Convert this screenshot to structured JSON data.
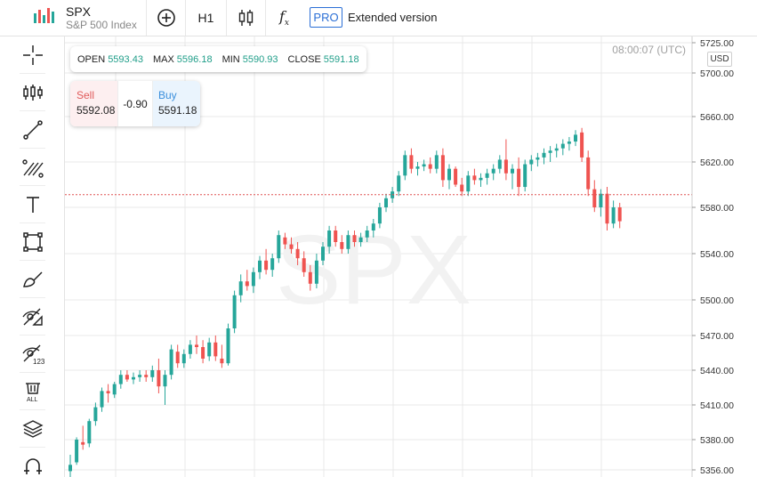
{
  "header": {
    "symbol": "SPX",
    "description": "S&P 500 Index",
    "timeframe": "H1",
    "pro_badge": "PRO",
    "extended_label": "Extended version"
  },
  "left_tools": [
    {
      "name": "crosshair-icon"
    },
    {
      "name": "indicators-icon"
    },
    {
      "name": "trend-line-icon"
    },
    {
      "name": "fib-tools-icon"
    },
    {
      "name": "text-tool-icon"
    },
    {
      "name": "rectangle-tool-icon"
    },
    {
      "name": "brush-tool-icon"
    },
    {
      "name": "hide-drawings-icon"
    },
    {
      "name": "hide-indicators-icon"
    },
    {
      "name": "delete-all-icon"
    },
    {
      "name": "layers-icon"
    },
    {
      "name": "magnet-icon"
    }
  ],
  "ohlc": {
    "open_label": "OPEN",
    "open": "5593.43",
    "max_label": "MAX",
    "max": "5596.18",
    "min_label": "MIN",
    "min": "5590.93",
    "close_label": "CLOSE",
    "close": "5591.18"
  },
  "trade": {
    "sell_label": "Sell",
    "sell_price": "5592.08",
    "change": "-0.90",
    "buy_label": "Buy",
    "buy_price": "5591.18"
  },
  "clock": "08:00:07 (UTC)",
  "currency": "USD",
  "watermark": "SPX",
  "colors": {
    "up": "#26a69a",
    "down": "#ef5350",
    "grid": "#e8e8e8",
    "last_price_line": "#e05050"
  },
  "chart_data": {
    "type": "candlestick",
    "y_ticks": [
      "5725.00",
      "5700.00",
      "5660.00",
      "5620.00",
      "5580.00",
      "5540.00",
      "5500.00",
      "5470.00",
      "5440.00",
      "5410.00",
      "5380.00",
      "5356.00"
    ],
    "last_price": 5591.18,
    "candles": [
      [
        5355,
        5368,
        5345,
        5360
      ],
      [
        5362,
        5382,
        5360,
        5380
      ],
      [
        5378,
        5392,
        5372,
        5376
      ],
      [
        5377,
        5398,
        5374,
        5396
      ],
      [
        5396,
        5412,
        5392,
        5408
      ],
      [
        5408,
        5425,
        5404,
        5422
      ],
      [
        5422,
        5428,
        5412,
        5420
      ],
      [
        5419,
        5430,
        5416,
        5428
      ],
      [
        5428,
        5440,
        5424,
        5436
      ],
      [
        5436,
        5440,
        5430,
        5432
      ],
      [
        5432,
        5438,
        5428,
        5434
      ],
      [
        5434,
        5440,
        5430,
        5436
      ],
      [
        5436,
        5440,
        5430,
        5434
      ],
      [
        5434,
        5444,
        5430,
        5440
      ],
      [
        5440,
        5450,
        5420,
        5426
      ],
      [
        5426,
        5440,
        5410,
        5436
      ],
      [
        5436,
        5462,
        5432,
        5458
      ],
      [
        5456,
        5462,
        5442,
        5446
      ],
      [
        5446,
        5458,
        5442,
        5454
      ],
      [
        5454,
        5466,
        5450,
        5462
      ],
      [
        5462,
        5470,
        5454,
        5460
      ],
      [
        5460,
        5466,
        5446,
        5450
      ],
      [
        5452,
        5468,
        5448,
        5464
      ],
      [
        5464,
        5470,
        5448,
        5452
      ],
      [
        5450,
        5462,
        5442,
        5446
      ],
      [
        5446,
        5480,
        5444,
        5476
      ],
      [
        5476,
        5508,
        5472,
        5504
      ],
      [
        5504,
        5522,
        5498,
        5516
      ],
      [
        5516,
        5526,
        5508,
        5512
      ],
      [
        5512,
        5528,
        5506,
        5524
      ],
      [
        5524,
        5538,
        5518,
        5534
      ],
      [
        5534,
        5544,
        5522,
        5526
      ],
      [
        5526,
        5540,
        5520,
        5536
      ],
      [
        5536,
        5560,
        5532,
        5556
      ],
      [
        5554,
        5558,
        5544,
        5548
      ],
      [
        5548,
        5554,
        5540,
        5544
      ],
      [
        5544,
        5550,
        5530,
        5536
      ],
      [
        5536,
        5542,
        5520,
        5524
      ],
      [
        5524,
        5530,
        5508,
        5514
      ],
      [
        5514,
        5540,
        5510,
        5534
      ],
      [
        5534,
        5550,
        5530,
        5546
      ],
      [
        5546,
        5564,
        5540,
        5560
      ],
      [
        5560,
        5564,
        5546,
        5550
      ],
      [
        5550,
        5556,
        5540,
        5544
      ],
      [
        5544,
        5560,
        5540,
        5556
      ],
      [
        5556,
        5560,
        5546,
        5550
      ],
      [
        5550,
        5558,
        5546,
        5554
      ],
      [
        5554,
        5564,
        5550,
        5560
      ],
      [
        5560,
        5570,
        5554,
        5566
      ],
      [
        5566,
        5584,
        5562,
        5580
      ],
      [
        5580,
        5592,
        5576,
        5588
      ],
      [
        5588,
        5598,
        5584,
        5594
      ],
      [
        5594,
        5612,
        5590,
        5608
      ],
      [
        5608,
        5630,
        5604,
        5626
      ],
      [
        5626,
        5632,
        5610,
        5614
      ],
      [
        5614,
        5620,
        5608,
        5616
      ],
      [
        5616,
        5622,
        5612,
        5618
      ],
      [
        5618,
        5624,
        5610,
        5614
      ],
      [
        5614,
        5630,
        5610,
        5626
      ],
      [
        5626,
        5632,
        5598,
        5604
      ],
      [
        5604,
        5618,
        5596,
        5614
      ],
      [
        5614,
        5616,
        5598,
        5600
      ],
      [
        5600,
        5606,
        5590,
        5594
      ],
      [
        5594,
        5612,
        5590,
        5608
      ],
      [
        5608,
        5614,
        5600,
        5604
      ],
      [
        5604,
        5610,
        5598,
        5606
      ],
      [
        5606,
        5614,
        5600,
        5610
      ],
      [
        5610,
        5618,
        5604,
        5614
      ],
      [
        5614,
        5626,
        5610,
        5622
      ],
      [
        5622,
        5640,
        5604,
        5610
      ],
      [
        5610,
        5618,
        5596,
        5614
      ],
      [
        5614,
        5624,
        5590,
        5598
      ],
      [
        5598,
        5622,
        5594,
        5618
      ],
      [
        5618,
        5626,
        5612,
        5622
      ],
      [
        5622,
        5628,
        5616,
        5624
      ],
      [
        5624,
        5632,
        5618,
        5628
      ],
      [
        5628,
        5634,
        5620,
        5630
      ],
      [
        5630,
        5636,
        5624,
        5632
      ],
      [
        5632,
        5640,
        5626,
        5636
      ],
      [
        5636,
        5642,
        5630,
        5638
      ],
      [
        5638,
        5648,
        5634,
        5644
      ],
      [
        5646,
        5650,
        5620,
        5624
      ],
      [
        5624,
        5630,
        5590,
        5596
      ],
      [
        5596,
        5604,
        5576,
        5580
      ],
      [
        5580,
        5596,
        5572,
        5592
      ],
      [
        5592,
        5598,
        5560,
        5566
      ],
      [
        5566,
        5586,
        5562,
        5580
      ],
      [
        5580,
        5584,
        5562,
        5568
      ]
    ]
  }
}
